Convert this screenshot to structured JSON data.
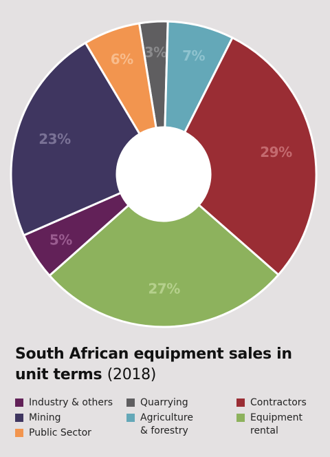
{
  "chart_data": {
    "type": "pie",
    "donut": true,
    "title_bold": "South African equipment sales in unit terms",
    "title_normal": "(2018)",
    "slices": [
      {
        "name": "Quarrying",
        "value": 3,
        "label": "3%",
        "color": "#5f5e60",
        "label_color": "#8a8a8c"
      },
      {
        "name": "Agriculture & forestry",
        "value": 7,
        "label": "7%",
        "color": "#64a8b8",
        "label_color": "#8fc3cf"
      },
      {
        "name": "Contractors",
        "value": 29,
        "label": "29%",
        "color": "#9a2d34",
        "label_color": "#c46a6f"
      },
      {
        "name": "Equipment rental",
        "value": 27,
        "label": "27%",
        "color": "#8db25d",
        "label_color": "#b5d08c"
      },
      {
        "name": "Industry & others",
        "value": 5,
        "label": "5%",
        "color": "#622158",
        "label_color": "#9a5c90"
      },
      {
        "name": "Mining",
        "value": 23,
        "label": "23%",
        "color": "#3f3660",
        "label_color": "#7a7296"
      },
      {
        "name": "Public Sector",
        "value": 6,
        "label": "6%",
        "color": "#f2954f",
        "label_color": "#f8bc8c"
      }
    ]
  },
  "legend": [
    {
      "text": "Industry & others",
      "color": "#622158"
    },
    {
      "text": "Quarrying",
      "color": "#5f5e60"
    },
    {
      "text": "Contractors",
      "color": "#9a2d34"
    },
    {
      "text": "Mining",
      "color": "#3f3660"
    },
    {
      "text": "Agriculture\n& forestry",
      "color": "#64a8b8"
    },
    {
      "text": "Equipment\nrental",
      "color": "#8db25d"
    },
    {
      "text": "Public Sector",
      "color": "#f2954f"
    }
  ]
}
